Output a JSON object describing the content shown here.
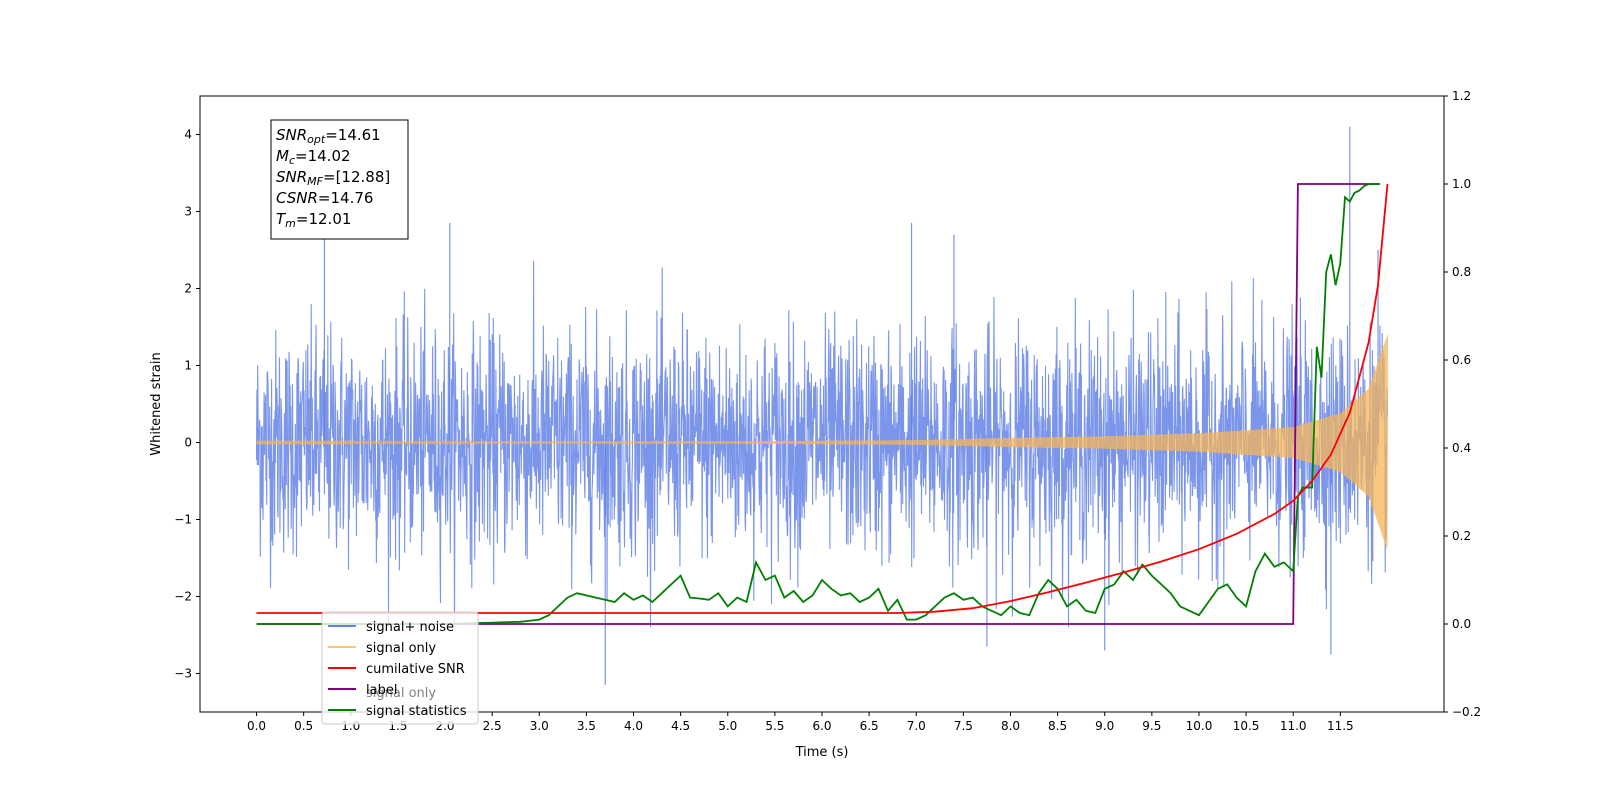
{
  "chart_data": {
    "type": "line",
    "xlabel": "Time (s)",
    "ylabel": "Whitened strain",
    "xlim": [
      -0.6,
      12.6
    ],
    "ylim": [
      -3.5,
      4.5
    ],
    "y2lim": [
      -0.2,
      1.2
    ],
    "x_ticks": [
      "0.0",
      "0.5",
      "1.0",
      "1.5",
      "2.0",
      "2.5",
      "3.0",
      "3.5",
      "4.0",
      "4.5",
      "5.0",
      "5.5",
      "6.0",
      "6.5",
      "7.0",
      "7.5",
      "8.0",
      "8.5",
      "9.0",
      "9.5",
      "10.0",
      "10.5",
      "11.0",
      "11.5"
    ],
    "y_ticks": [
      "−3",
      "−2",
      "−1",
      "0",
      "1",
      "2",
      "3",
      "4"
    ],
    "y2_ticks": [
      "−0.2",
      "0.0",
      "0.2",
      "0.4",
      "0.6",
      "0.8",
      "1.0",
      "1.2"
    ],
    "legend_position": "lower-left",
    "colors": {
      "signal_noise": "#6382e6",
      "signal_only": "#f5b55a",
      "cumulative_snr": "#ff0000",
      "label": "#800080",
      "statistics": "#008000"
    },
    "legend": [
      {
        "label": "signal+ noise",
        "color": "#6382e6"
      },
      {
        "label": "signal only",
        "color": "#ffc864"
      },
      {
        "label": "cumilative SNR",
        "color": "#ff0000"
      },
      {
        "label": "label",
        "color": "#800080"
      },
      {
        "label": "signal statistics",
        "color": "#008000"
      }
    ],
    "legend_ghost_text": "signal only",
    "annotation": [
      {
        "name": "SNR",
        "sub": "opt",
        "value": "=14.61"
      },
      {
        "name": "M",
        "sub": "c",
        "value": "=14.02"
      },
      {
        "name": "SNR",
        "sub": "MF",
        "value": "=[12.88]"
      },
      {
        "name": "CSNR",
        "sub": "",
        "value": "=14.76"
      },
      {
        "name": "T",
        "sub": "m",
        "value": "=12.01"
      }
    ],
    "series": [
      {
        "name": "signal+ noise",
        "axis": "left",
        "description": "whitened noise, approx |y|<=2 with spikes up to 4.1",
        "spikes": [
          [
            0.72,
            2.72
          ],
          [
            2.05,
            2.85
          ],
          [
            6.95,
            2.85
          ],
          [
            7.4,
            2.7
          ],
          [
            11.6,
            4.1
          ],
          [
            11.9,
            2.5
          ],
          [
            3.7,
            -3.15
          ],
          [
            11.4,
            -2.75
          ],
          [
            9.0,
            -2.7
          ],
          [
            7.75,
            -2.65
          ]
        ]
      },
      {
        "name": "signal only",
        "axis": "left",
        "envelope": [
          [
            0,
            0.01
          ],
          [
            5,
            0.015
          ],
          [
            7,
            0.03
          ],
          [
            8,
            0.06
          ],
          [
            9,
            0.08
          ],
          [
            10,
            0.12
          ],
          [
            10.5,
            0.16
          ],
          [
            11,
            0.2
          ],
          [
            11.5,
            0.38
          ],
          [
            11.8,
            0.7
          ],
          [
            12.0,
            1.4
          ]
        ]
      },
      {
        "name": "cumilative SNR",
        "axis": "right",
        "x": [
          0,
          2,
          4,
          6,
          6.8,
          7.2,
          7.6,
          8.0,
          8.4,
          8.8,
          9.2,
          9.6,
          10.0,
          10.4,
          10.8,
          11.0,
          11.2,
          11.4,
          11.6,
          11.8,
          11.9,
          12.0
        ],
        "y": [
          0.025,
          0.025,
          0.025,
          0.025,
          0.025,
          0.028,
          0.036,
          0.052,
          0.072,
          0.094,
          0.117,
          0.142,
          0.17,
          0.205,
          0.25,
          0.28,
          0.325,
          0.385,
          0.48,
          0.64,
          0.77,
          1.0
        ]
      },
      {
        "name": "label",
        "axis": "right",
        "x": [
          0,
          11.0,
          11.05,
          11.92
        ],
        "y": [
          0,
          0,
          1,
          1
        ]
      },
      {
        "name": "signal statistics",
        "axis": "right",
        "x": [
          0,
          1,
          2,
          2.8,
          3.0,
          3.1,
          3.2,
          3.3,
          3.4,
          3.5,
          3.6,
          3.7,
          3.8,
          3.9,
          4.0,
          4.1,
          4.2,
          4.3,
          4.4,
          4.5,
          4.6,
          4.7,
          4.8,
          4.9,
          5.0,
          5.1,
          5.2,
          5.3,
          5.4,
          5.5,
          5.6,
          5.7,
          5.8,
          5.9,
          6.0,
          6.1,
          6.2,
          6.3,
          6.4,
          6.5,
          6.6,
          6.7,
          6.8,
          6.9,
          7.0,
          7.1,
          7.2,
          7.3,
          7.4,
          7.5,
          7.6,
          7.7,
          7.8,
          7.9,
          8.0,
          8.1,
          8.2,
          8.3,
          8.4,
          8.5,
          8.6,
          8.7,
          8.8,
          8.9,
          9.0,
          9.1,
          9.2,
          9.3,
          9.4,
          9.5,
          9.6,
          9.7,
          9.8,
          9.9,
          10.0,
          10.1,
          10.2,
          10.3,
          10.4,
          10.5,
          10.6,
          10.7,
          10.8,
          10.9,
          11.0,
          11.05,
          11.1,
          11.2,
          11.25,
          11.3,
          11.35,
          11.4,
          11.45,
          11.5,
          11.55,
          11.6,
          11.65,
          11.7,
          11.75,
          11.8,
          11.85,
          11.92
        ],
        "y": [
          0,
          0,
          0,
          0.005,
          0.01,
          0.02,
          0.04,
          0.06,
          0.07,
          0.065,
          0.06,
          0.055,
          0.05,
          0.07,
          0.055,
          0.065,
          0.05,
          0.07,
          0.09,
          0.11,
          0.06,
          0.058,
          0.055,
          0.07,
          0.04,
          0.06,
          0.05,
          0.14,
          0.1,
          0.11,
          0.06,
          0.075,
          0.05,
          0.065,
          0.1,
          0.08,
          0.065,
          0.07,
          0.05,
          0.06,
          0.08,
          0.03,
          0.055,
          0.01,
          0.01,
          0.02,
          0.04,
          0.06,
          0.07,
          0.055,
          0.06,
          0.04,
          0.03,
          0.02,
          0.04,
          0.025,
          0.02,
          0.07,
          0.1,
          0.08,
          0.04,
          0.055,
          0.03,
          0.025,
          0.08,
          0.09,
          0.12,
          0.1,
          0.135,
          0.11,
          0.09,
          0.07,
          0.04,
          0.03,
          0.02,
          0.05,
          0.08,
          0.09,
          0.06,
          0.04,
          0.12,
          0.16,
          0.13,
          0.14,
          0.12,
          0.29,
          0.31,
          0.31,
          0.63,
          0.56,
          0.8,
          0.84,
          0.77,
          0.82,
          0.97,
          0.96,
          0.98,
          0.985,
          0.995,
          1.0,
          1.0,
          1.0
        ]
      }
    ]
  }
}
